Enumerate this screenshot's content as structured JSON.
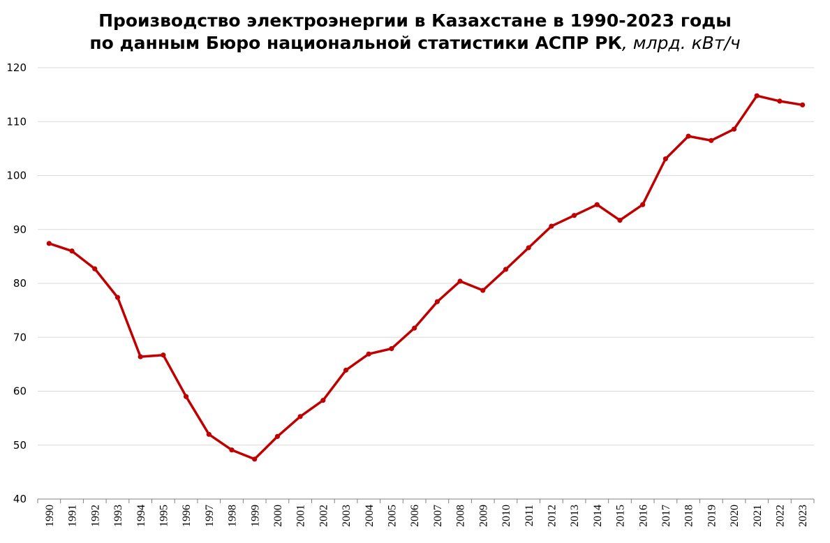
{
  "chart_data": {
    "type": "line",
    "title": "Производство электроэнергии в Казахстане в 1990-2023 годы",
    "subtitle": "по данным Бюро национальной статистики АСПР РК",
    "unit": ", млрд. кВт/ч",
    "xlabel": "",
    "ylabel": "",
    "ylim": [
      40,
      120
    ],
    "yticks": [
      40,
      50,
      60,
      70,
      80,
      90,
      100,
      110,
      120
    ],
    "grid": true,
    "line_color": "#C00000",
    "x": [
      "1990",
      "1991",
      "1992",
      "1993",
      "1994",
      "1995",
      "1996",
      "1997",
      "1998",
      "1999",
      "2000",
      "2001",
      "2002",
      "2003",
      "2004",
      "2005",
      "2006",
      "2007",
      "2008",
      "2009",
      "2010",
      "2011",
      "2012",
      "2013",
      "2014",
      "2015",
      "2016",
      "2017",
      "2018",
      "2019",
      "2020",
      "2021",
      "2022",
      "2023"
    ],
    "series": [
      {
        "values": [
          87.4,
          86.0,
          82.7,
          77.4,
          66.4,
          66.7,
          59.0,
          52.0,
          49.1,
          47.4,
          51.6,
          55.3,
          58.3,
          63.9,
          66.9,
          67.9,
          71.7,
          76.6,
          80.4,
          78.7,
          82.6,
          86.6,
          90.6,
          92.6,
          94.6,
          91.7,
          94.6,
          103.1,
          107.3,
          106.5,
          108.6,
          114.8,
          113.8,
          113.1
        ]
      }
    ]
  }
}
